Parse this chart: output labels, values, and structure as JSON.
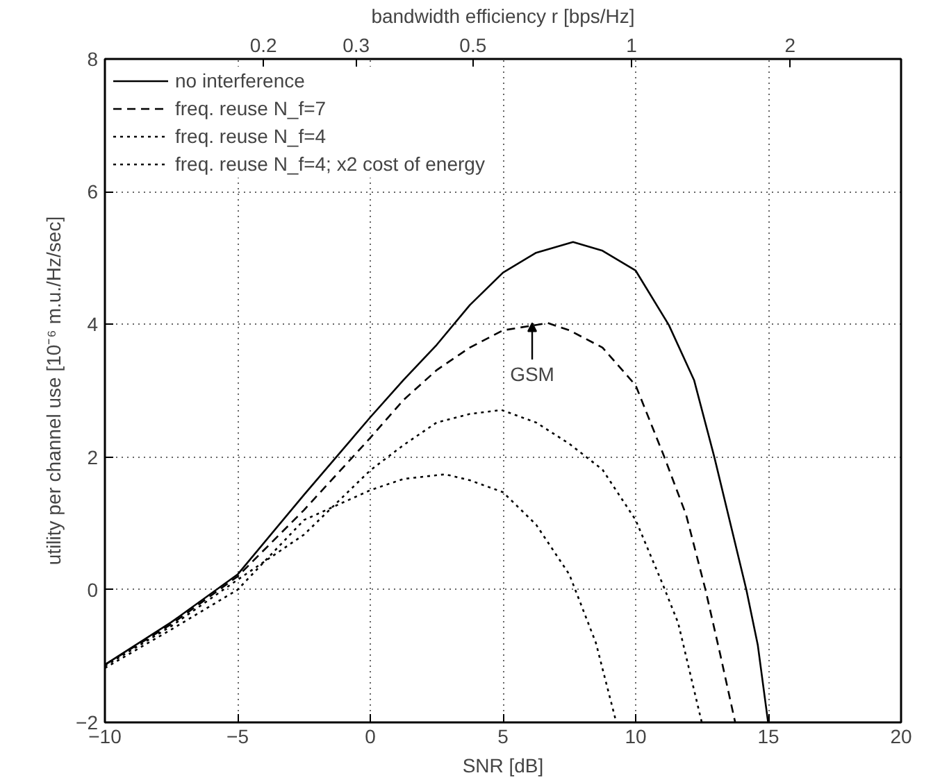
{
  "chart_data": {
    "type": "line",
    "xlabel": "SNR [dB]",
    "ylabel": "utility per channel use [10⁻⁶ m.u./Hz/sec]",
    "x2label": "bandwidth efficiency r [bps/Hz]",
    "xlim": [
      -10,
      20
    ],
    "xticks": [
      -10,
      -5,
      0,
      5,
      10,
      15,
      20
    ],
    "ylim": [
      -2,
      8
    ],
    "yticks": [
      -2,
      0,
      2,
      4,
      6,
      8
    ],
    "x2lim": [
      0.1,
      3.25
    ],
    "x2ticks": [
      0.2,
      0.3,
      0.5,
      1,
      2
    ],
    "log": "x2",
    "grid": true,
    "legend": "top left",
    "marker": "none",
    "series": [
      {
        "name": "no interference",
        "color": "#000000",
        "line_style": "solid",
        "x": [
          -10,
          -7.5,
          -5,
          -2.5,
          0,
          1.25,
          2.5,
          3.75,
          5,
          6.25,
          7.64,
          8.75,
          10,
          11.25,
          12.2,
          12.97,
          14.17,
          14.6,
          14.99
        ],
        "values": [
          -1.13,
          -0.49,
          0.23,
          1.43,
          2.6,
          3.16,
          3.69,
          4.29,
          4.78,
          5.08,
          5.24,
          5.11,
          4.81,
          3.99,
          3.16,
          1.99,
          0,
          -0.83,
          -2
        ]
      },
      {
        "name": "freq. reuse N_f=7",
        "color": "#000000",
        "line_style": "dashed",
        "x": [
          -10,
          -7.5,
          -5,
          -2.5,
          0,
          1.25,
          2.5,
          3.75,
          5,
          6.69,
          7.5,
          8.75,
          10,
          11.08,
          11.9,
          12.63,
          13.2,
          13.75
        ],
        "values": [
          -1.13,
          -0.52,
          0.2,
          1.2,
          2.29,
          2.86,
          3.31,
          3.65,
          3.91,
          4.02,
          3.91,
          3.65,
          3.08,
          2.0,
          1.13,
          0,
          -1.0,
          -2
        ]
      },
      {
        "name": "freq. reuse N_f=4",
        "color": "#000000",
        "line_style": "dotted",
        "x": [
          -10,
          -7.5,
          -5,
          -2.5,
          0,
          1.25,
          2.5,
          3.75,
          4.94,
          6.25,
          7.5,
          8.75,
          10,
          11.0,
          11.6,
          12.49
        ],
        "values": [
          -1.15,
          -0.55,
          0.15,
          0.83,
          1.8,
          2.18,
          2.52,
          2.65,
          2.71,
          2.52,
          2.2,
          1.81,
          1.05,
          0.1,
          -0.5,
          -2
        ]
      },
      {
        "name": "freq. reuse N_f=4; x2 cost of energy",
        "color": "#000000",
        "line_style": "dotted",
        "x": [
          -10,
          -7.5,
          -5,
          -2.5,
          0,
          1.25,
          2.82,
          3.75,
          5,
          6.25,
          7.5,
          8.5,
          9.27
        ],
        "values": [
          -1.18,
          -0.6,
          0.0,
          1.05,
          1.5,
          1.67,
          1.74,
          1.65,
          1.47,
          0.98,
          0.23,
          -0.8,
          -2
        ]
      }
    ],
    "annotations": [
      {
        "text": "GSM",
        "x": 6.1,
        "y": 4.02
      }
    ]
  }
}
